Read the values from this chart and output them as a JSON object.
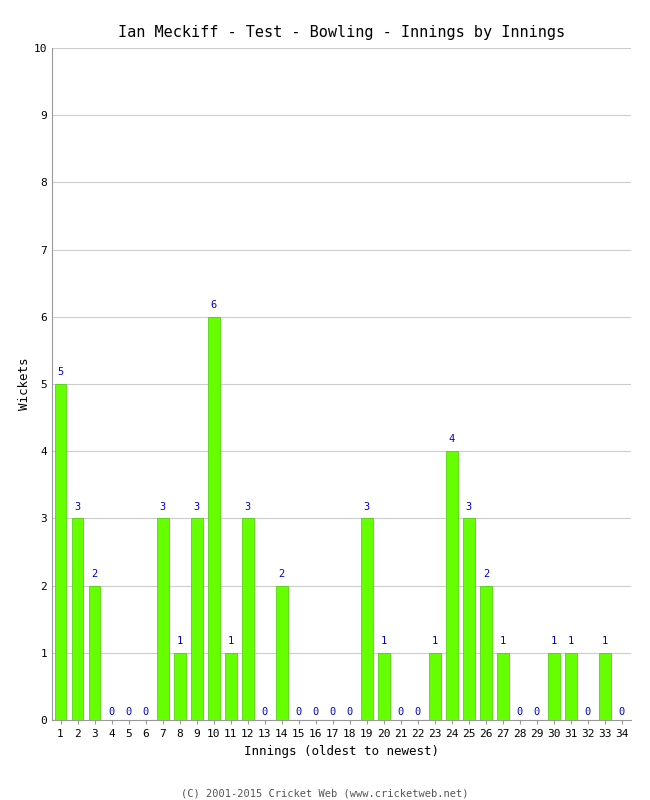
{
  "title": "Ian Meckiff - Test - Bowling - Innings by Innings",
  "xlabel": "Innings (oldest to newest)",
  "ylabel": "Wickets",
  "values": [
    5,
    3,
    2,
    0,
    0,
    0,
    3,
    1,
    3,
    6,
    1,
    3,
    0,
    2,
    0,
    0,
    0,
    0,
    3,
    1,
    0,
    0,
    1,
    4,
    3,
    2,
    1,
    0,
    0,
    1,
    1,
    0,
    1,
    0
  ],
  "innings": [
    1,
    2,
    3,
    4,
    5,
    6,
    7,
    8,
    9,
    10,
    11,
    12,
    13,
    14,
    15,
    16,
    17,
    18,
    19,
    20,
    21,
    22,
    23,
    24,
    25,
    26,
    27,
    28,
    29,
    30,
    31,
    32,
    33,
    34
  ],
  "bar_color": "#66ff00",
  "bar_edge_color": "#44cc00",
  "label_color": "#0000cc",
  "background_color": "#ffffff",
  "grid_color": "#cccccc",
  "ylim": [
    0,
    10
  ],
  "yticks": [
    0,
    1,
    2,
    3,
    4,
    5,
    6,
    7,
    8,
    9,
    10
  ],
  "title_fontsize": 11,
  "axis_label_fontsize": 9,
  "tick_fontsize": 8,
  "bar_label_fontsize": 7.5,
  "footer": "(C) 2001-2015 Cricket Web (www.cricketweb.net)"
}
